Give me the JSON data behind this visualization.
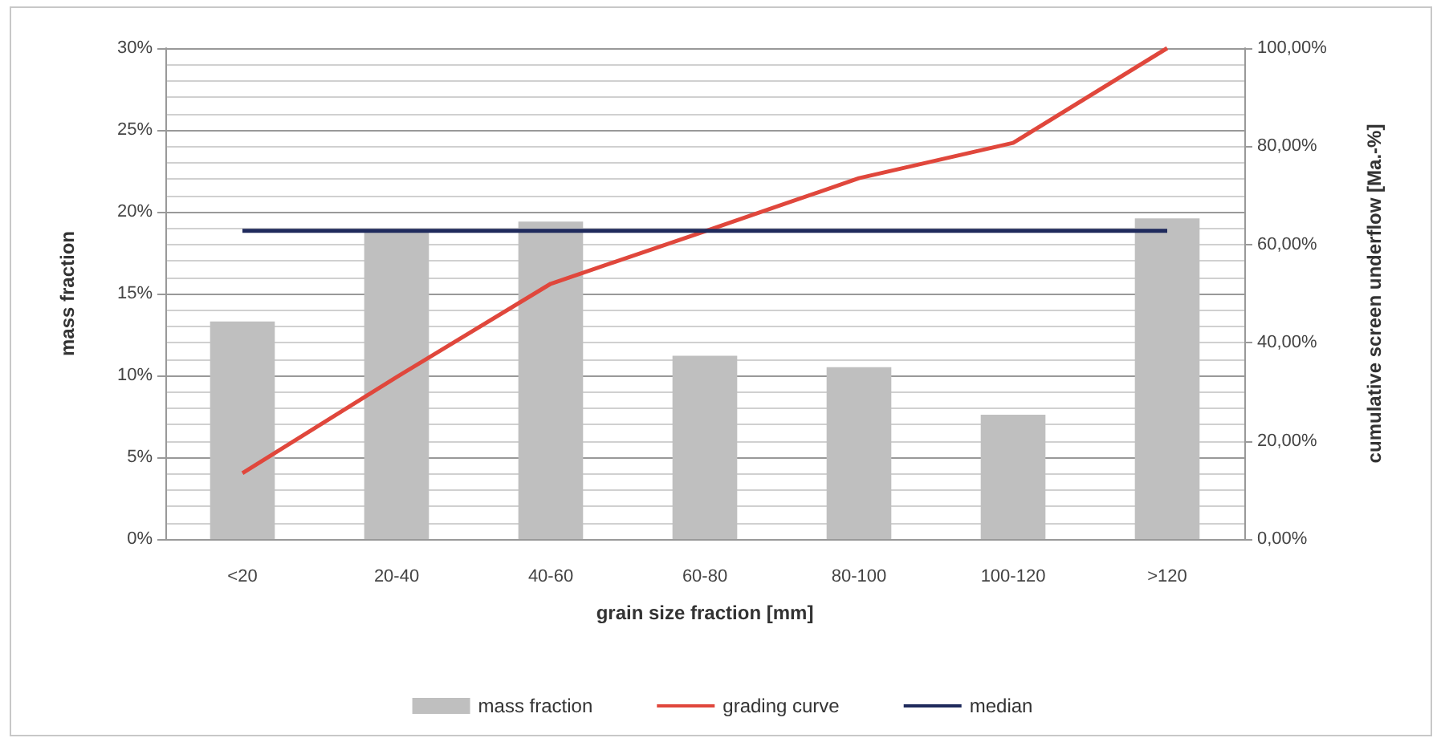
{
  "chart_data": {
    "type": "bar",
    "xlabel": "grain size fraction [mm]",
    "ylabel": "mass fraction",
    "y2label": "cumulative screen underflow [Ma.-%]",
    "categories": [
      "<20",
      "20-40",
      "40-60",
      "60-80",
      "80-100",
      "100-120",
      ">120"
    ],
    "series": [
      {
        "name": "mass fraction",
        "color": "#bfbfbf",
        "values": [
          13.3,
          18.8,
          19.4,
          11.2,
          10.5,
          7.6,
          19.6
        ]
      },
      {
        "name": "grading curve",
        "type": "line",
        "axis": "y2",
        "color": "#e0473c",
        "values": [
          13.4,
          33,
          52,
          62.7,
          73.5,
          80.7,
          100
        ]
      },
      {
        "name": "median",
        "type": "line",
        "axis": "y2",
        "color": "#1f2a5c",
        "values": [
          62.8,
          62.8,
          62.8,
          62.8,
          62.8,
          62.8,
          62.8
        ]
      }
    ],
    "ylim": [
      0,
      30
    ],
    "yticks": [
      {
        "value": 0,
        "label": "0%"
      },
      {
        "value": 5,
        "label": "5%"
      },
      {
        "value": 10,
        "label": "10%"
      },
      {
        "value": 15,
        "label": "15%"
      },
      {
        "value": 20,
        "label": "20%"
      },
      {
        "value": 25,
        "label": "25%"
      },
      {
        "value": 30,
        "label": "30%"
      }
    ],
    "y2lim": [
      0,
      100
    ],
    "y2ticks": [
      {
        "value": 0,
        "label": "0,00%"
      },
      {
        "value": 20,
        "label": "20,00%"
      },
      {
        "value": 40,
        "label": "40,00%"
      },
      {
        "value": 60,
        "label": "60,00%"
      },
      {
        "value": 80,
        "label": "80,00%"
      },
      {
        "value": 100,
        "label": "100,00%"
      }
    ],
    "grid": "y",
    "legend": "bottom",
    "marker": "none",
    "line_style": "solid"
  }
}
